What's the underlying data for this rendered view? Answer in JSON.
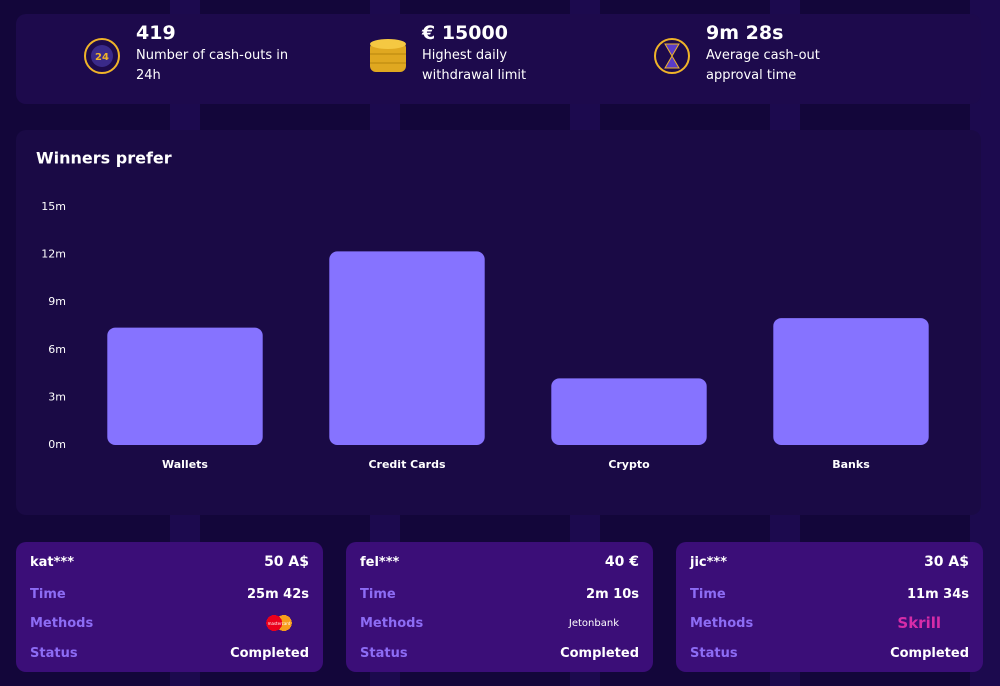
{
  "stats": [
    {
      "value": "419",
      "label": "Number of cash-outs in 24h"
    },
    {
      "value": "€ 15000",
      "label": "Highest daily withdrawal limit"
    },
    {
      "value": "9m 28s",
      "label": "Average cash-out approval time"
    }
  ],
  "chart_data": {
    "type": "bar",
    "title": "Winners prefer",
    "categories": [
      "Wallets",
      "Credit Cards",
      "Crypto",
      "Banks"
    ],
    "values": [
      7.4,
      12.2,
      4.2,
      8.0
    ],
    "color": "#8673ff",
    "ylim": [
      0,
      15
    ],
    "yticks": [
      {
        "value": 0,
        "label": "0m"
      },
      {
        "value": 3,
        "label": "3m"
      },
      {
        "value": 6,
        "label": "6m"
      },
      {
        "value": 9,
        "label": "9m"
      },
      {
        "value": 12,
        "label": "12m"
      },
      {
        "value": 15,
        "label": "15m"
      }
    ],
    "grid": false
  },
  "row_labels": {
    "time": "Time",
    "methods": "Methods",
    "status": "Status"
  },
  "transactions": [
    {
      "user": "kat***",
      "amount": "50 A$",
      "time": "25m 42s",
      "method": "mastercard",
      "status": "Completed"
    },
    {
      "user": "fel***",
      "amount": "40 €",
      "time": "2m 10s",
      "method": "Jetonbank",
      "status": "Completed"
    },
    {
      "user": "jic***",
      "amount": "30 A$",
      "time": "11m 34s",
      "method": "Skrill",
      "status": "Completed"
    }
  ]
}
